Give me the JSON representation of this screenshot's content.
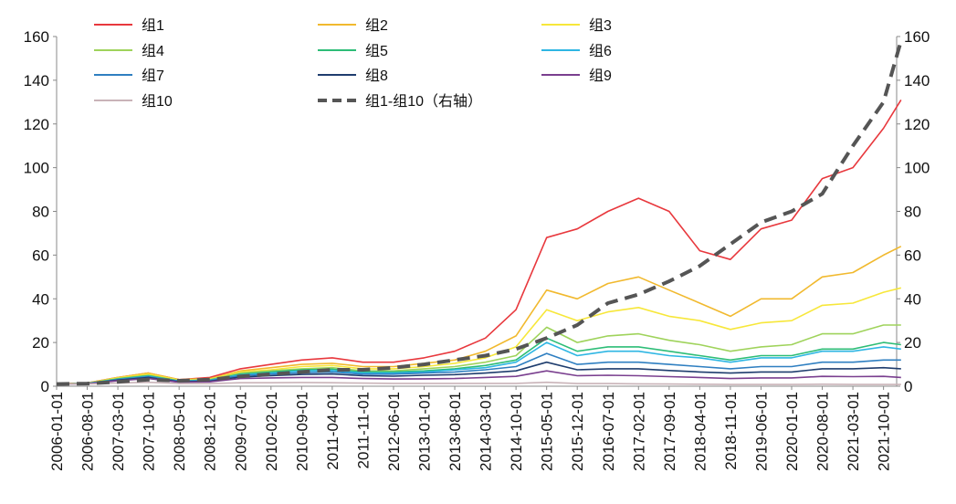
{
  "chart_data": {
    "type": "line",
    "left_axis": {
      "ylim": [
        0,
        160
      ],
      "ticks": [
        "0",
        "20",
        "40",
        "60",
        "80",
        "100",
        "120",
        "140",
        "160"
      ]
    },
    "right_axis": {
      "ylim": [
        0,
        160
      ],
      "ticks": [
        "0",
        "20",
        "40",
        "60",
        "80",
        "100",
        "120",
        "140",
        "160"
      ]
    },
    "x_tick_labels": [
      "2006-01-01",
      "2006-08-01",
      "2007-03-01",
      "2007-10-01",
      "2008-05-01",
      "2008-12-01",
      "2009-07-01",
      "2010-02-01",
      "2010-09-01",
      "2011-04-01",
      "2011-11-01",
      "2012-06-01",
      "2013-01-01",
      "2013-08-01",
      "2014-03-01",
      "2014-10-01",
      "2015-05-01",
      "2015-12-01",
      "2016-07-01",
      "2017-02-01",
      "2017-09-01",
      "2018-04-01",
      "2018-11-01",
      "2019-06-01",
      "2020-01-01",
      "2020-08-01",
      "2021-03-01",
      "2021-10-01"
    ],
    "x": [
      "2006-01",
      "2006-08",
      "2007-03",
      "2007-10",
      "2008-05",
      "2008-12",
      "2009-07",
      "2010-02",
      "2010-09",
      "2011-04",
      "2011-11",
      "2012-06",
      "2013-01",
      "2013-08",
      "2014-03",
      "2014-10",
      "2015-05",
      "2015-12",
      "2016-07",
      "2017-02",
      "2017-09",
      "2018-04",
      "2018-11",
      "2019-06",
      "2020-01",
      "2020-08",
      "2021-03",
      "2021-10",
      "2022-02"
    ],
    "legend_position": "top",
    "series": [
      {
        "name": "组1",
        "color": "#e8383d",
        "axis": "left",
        "dash": false,
        "values": [
          1,
          1.5,
          4,
          6,
          3,
          4,
          8,
          10,
          12,
          13,
          11,
          11,
          13,
          16,
          22,
          35,
          68,
          72,
          80,
          86,
          80,
          62,
          58,
          72,
          76,
          95,
          100,
          118,
          131
        ]
      },
      {
        "name": "组2",
        "color": "#f1b92e",
        "axis": "left",
        "dash": false,
        "values": [
          1,
          1.4,
          4,
          6,
          3,
          3.5,
          7,
          8.5,
          10,
          10.5,
          9,
          9,
          10.5,
          12,
          16,
          23,
          44,
          40,
          47,
          50,
          44,
          38,
          32,
          40,
          40,
          50,
          52,
          60,
          64
        ]
      },
      {
        "name": "组3",
        "color": "#f7e73a",
        "axis": "left",
        "dash": false,
        "values": [
          1,
          1.4,
          3.8,
          5.5,
          2.8,
          3.2,
          6.5,
          7.5,
          9,
          9.5,
          8,
          8,
          9,
          10.5,
          13,
          18,
          35,
          30,
          34,
          36,
          32,
          30,
          26,
          29,
          30,
          37,
          38,
          43,
          45
        ]
      },
      {
        "name": "组4",
        "color": "#9fd35b",
        "axis": "left",
        "dash": false,
        "values": [
          1,
          1.3,
          3.5,
          5,
          2.5,
          3,
          6,
          7,
          8,
          8.5,
          7,
          7,
          8,
          9,
          11,
          14,
          27,
          20,
          23,
          24,
          21,
          19,
          16,
          18,
          19,
          24,
          24,
          28,
          28
        ]
      },
      {
        "name": "组5",
        "color": "#2dbd77",
        "axis": "left",
        "dash": false,
        "values": [
          1,
          1.3,
          3.3,
          4.8,
          2.4,
          2.8,
          5.5,
          6.5,
          7.5,
          7.8,
          6.5,
          6.5,
          7,
          8,
          9.5,
          12,
          22,
          16,
          18,
          18,
          16,
          14,
          12,
          14,
          14,
          17,
          17,
          20,
          19
        ]
      },
      {
        "name": "组6",
        "color": "#2eb6e3",
        "axis": "left",
        "dash": false,
        "values": [
          1,
          1.2,
          3.1,
          4.5,
          2.3,
          2.7,
          5.2,
          6,
          7,
          7.2,
          6,
          6,
          6.5,
          7.5,
          8.5,
          11,
          20,
          14,
          16,
          16,
          14,
          13,
          11,
          13,
          13,
          16,
          16,
          18,
          17
        ]
      },
      {
        "name": "组7",
        "color": "#2f7fc1",
        "axis": "left",
        "dash": false,
        "values": [
          1,
          1.2,
          3,
          4.3,
          2.2,
          2.5,
          4.8,
          5.5,
          6.2,
          6.5,
          5.5,
          5.5,
          6,
          6.5,
          7.5,
          9,
          15,
          10,
          11,
          11,
          10,
          9,
          8,
          9,
          9,
          11,
          11,
          12,
          12
        ]
      },
      {
        "name": "组8",
        "color": "#1f3d6e",
        "axis": "left",
        "dash": false,
        "values": [
          1,
          1.1,
          2.8,
          4,
          2,
          2.3,
          4.2,
          4.8,
          5.4,
          5.6,
          4.8,
          4.6,
          5,
          5.3,
          6,
          7,
          11,
          7.5,
          8,
          8,
          7.2,
          6.5,
          6,
          6.5,
          6.5,
          8,
          8,
          8.5,
          8
        ]
      },
      {
        "name": "组9",
        "color": "#7a3f8f",
        "axis": "left",
        "dash": false,
        "values": [
          1,
          1.1,
          2.5,
          3.5,
          1.8,
          2,
          3.5,
          3.8,
          4,
          4,
          3.5,
          3.3,
          3.4,
          3.5,
          4,
          4.5,
          7,
          4.8,
          5,
          4.8,
          4.4,
          4,
          3.5,
          3.8,
          3.8,
          4.5,
          4.4,
          4.5,
          4
        ]
      },
      {
        "name": "组10",
        "color": "#c9b3b8",
        "axis": "left",
        "dash": false,
        "values": [
          1,
          1,
          1.5,
          1.8,
          1.2,
          1.2,
          1.6,
          1.6,
          1.7,
          1.6,
          1.4,
          1.3,
          1.3,
          1.3,
          1.3,
          1.3,
          1.8,
          1.2,
          1.2,
          1.1,
          1,
          0.9,
          0.8,
          0.8,
          0.8,
          0.9,
          0.8,
          0.8,
          0.8
        ]
      },
      {
        "name": "组1-组10（右轴）",
        "color": "#555555",
        "axis": "right",
        "dash": true,
        "values": [
          1,
          1.2,
          2,
          3,
          2.5,
          3,
          4.5,
          5.5,
          6.5,
          7.5,
          7.5,
          8.5,
          10,
          12,
          14,
          17,
          22,
          28,
          38,
          42,
          48,
          55,
          65,
          75,
          80,
          88,
          110,
          130,
          158
        ]
      }
    ]
  }
}
